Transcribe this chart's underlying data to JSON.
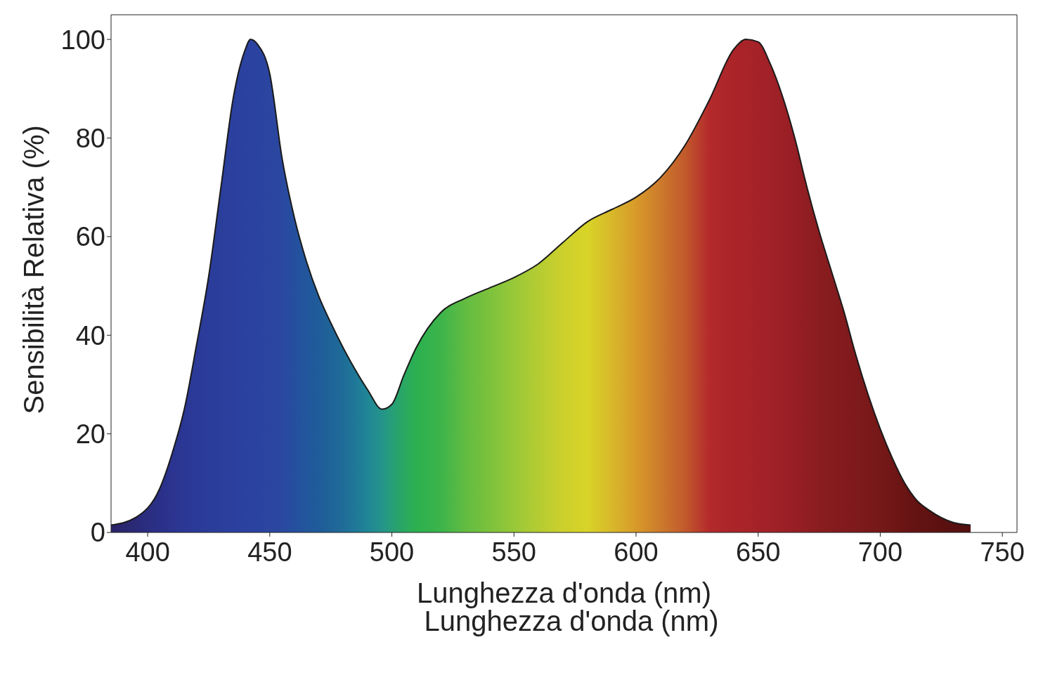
{
  "chart_data": {
    "type": "area",
    "xlabel": "Lunghezza d'onda (nm)",
    "ylabel": "Sensibilità Relativa (%)",
    "annotations": [
      "Lunghezza d'onda (nm)"
    ],
    "xlim": [
      385,
      756
    ],
    "xticks": [
      400,
      450,
      500,
      550,
      600,
      650,
      700,
      750
    ],
    "ylim": [
      0,
      105
    ],
    "yticks": [
      0,
      20,
      40,
      60,
      80,
      100
    ],
    "grid": false,
    "legend": false,
    "series": [
      {
        "color": "#1a1a1a",
        "x": [
          385,
          395,
          405,
          410,
          415,
          420,
          425,
          430,
          435,
          440,
          442,
          445,
          450,
          455,
          460,
          465,
          470,
          475,
          480,
          485,
          490,
          496,
          500,
          505,
          510,
          520,
          530,
          540,
          550,
          560,
          570,
          580,
          590,
          600,
          610,
          620,
          630,
          640,
          645,
          650,
          655,
          660,
          665,
          670,
          675,
          680,
          685,
          690,
          695,
          700,
          705,
          710,
          715,
          720,
          725,
          730,
          737
        ],
        "values": [
          1.5,
          3,
          9,
          16,
          25,
          38,
          52,
          70,
          88,
          98,
          100,
          99,
          93,
          76,
          64,
          55,
          48,
          42.5,
          37.5,
          33,
          29,
          25,
          26,
          32,
          37.5,
          44.6,
          47.5,
          49.6,
          51.7,
          54.5,
          58.8,
          63,
          65.5,
          68,
          72,
          78.5,
          87.7,
          98,
          100,
          99.5,
          95,
          88.4,
          80,
          70,
          61,
          53,
          45,
          36,
          28,
          21,
          15,
          10,
          6.5,
          4.5,
          3,
          2,
          1.5
        ],
        "colors": [
          "#2a2466",
          "#2a2a78",
          "#2b3088",
          "#2b3490",
          "#2b3794",
          "#2b3a98",
          "#2b3c9a",
          "#2b3e9c",
          "#2b409e",
          "#2b42a0",
          "#2b42a0",
          "#2b43a0",
          "#2b45a0",
          "#2a48a0",
          "#254f9e",
          "#22569c",
          "#1f5c9a",
          "#1f6498",
          "#1f6c98",
          "#1f7898",
          "#208696",
          "#24948a",
          "#279e78",
          "#2aa862",
          "#2cb050",
          "#3cb44a",
          "#62bc42",
          "#7cc23c",
          "#98c838",
          "#b4cc32",
          "#ccd02c",
          "#d8d428",
          "#d8b82a",
          "#d89a2a",
          "#cc7a2c",
          "#c25a2c",
          "#b42a2c",
          "#aa2428",
          "#a82428",
          "#a42228",
          "#a02228",
          "#9c2026",
          "#961e24",
          "#901e22",
          "#8a1c20",
          "#861c1e",
          "#821a1e",
          "#7e1a1c",
          "#7a181a",
          "#761818",
          "#701616",
          "#6a1414",
          "#641212",
          "#601212",
          "#5c1010",
          "#581010",
          "#521010"
        ]
      }
    ]
  }
}
